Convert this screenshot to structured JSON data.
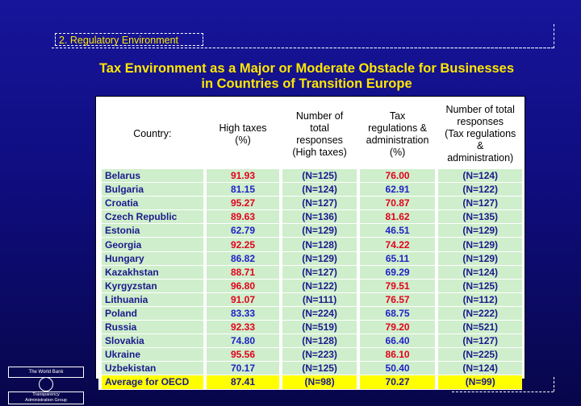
{
  "section_label": "2. Regulatory Environment",
  "title_line1": "Tax Environment as a Major or Moderate Obstacle for Businesses",
  "title_line2": "in Countries of Transition Europe",
  "headers": {
    "country": "Country:",
    "high_taxes": [
      "High taxes",
      "(%)"
    ],
    "responses_high": [
      "Number of",
      "total",
      "responses",
      "(High taxes)"
    ],
    "tax_regs": [
      "Tax",
      "regulations &",
      "administration",
      "(%)"
    ],
    "responses_regs": [
      "Number of total",
      "responses",
      "(Tax regulations",
      "&",
      "administration)"
    ]
  },
  "rows": [
    {
      "country": "Belarus",
      "high": "91.93",
      "high_color": "red",
      "n1": "(N=125)",
      "regs": "76.00",
      "regs_color": "red",
      "n2": "(N=124)"
    },
    {
      "country": "Bulgaria",
      "high": "81.15",
      "high_color": "blue",
      "n1": "(N=124)",
      "regs": "62.91",
      "regs_color": "blue",
      "n2": "(N=122)"
    },
    {
      "country": "Croatia",
      "high": "95.27",
      "high_color": "red",
      "n1": "(N=127)",
      "regs": "70.87",
      "regs_color": "red",
      "n2": "(N=127)"
    },
    {
      "country": "Czech Republic",
      "high": "89.63",
      "high_color": "red",
      "n1": "(N=136)",
      "regs": "81.62",
      "regs_color": "red",
      "n2": "(N=135)"
    },
    {
      "country": "Estonia",
      "high": "62.79",
      "high_color": "blue",
      "n1": "(N=129)",
      "regs": "46.51",
      "regs_color": "blue",
      "n2": "(N=129)"
    },
    {
      "country": "Georgia",
      "high": "92.25",
      "high_color": "red",
      "n1": "(N=128)",
      "regs": "74.22",
      "regs_color": "red",
      "n2": "(N=129)"
    },
    {
      "country": "Hungary",
      "high": "86.82",
      "high_color": "blue",
      "n1": "(N=129)",
      "regs": "65.11",
      "regs_color": "blue",
      "n2": "(N=129)"
    },
    {
      "country": "Kazakhstan",
      "high": "88.71",
      "high_color": "red",
      "n1": "(N=127)",
      "regs": "69.29",
      "regs_color": "blue",
      "n2": "(N=124)"
    },
    {
      "country": "Kyrgyzstan",
      "high": "96.80",
      "high_color": "red",
      "n1": "(N=122)",
      "regs": "79.51",
      "regs_color": "red",
      "n2": "(N=125)"
    },
    {
      "country": "Lithuania",
      "high": "91.07",
      "high_color": "red",
      "n1": "(N=111)",
      "regs": "76.57",
      "regs_color": "red",
      "n2": "(N=112)"
    },
    {
      "country": "Poland",
      "high": "83.33",
      "high_color": "blue",
      "n1": "(N=224)",
      "regs": "68.75",
      "regs_color": "blue",
      "n2": "(N=222)"
    },
    {
      "country": "Russia",
      "high": "92.33",
      "high_color": "red",
      "n1": "(N=519)",
      "regs": "79.20",
      "regs_color": "red",
      "n2": "(N=521)"
    },
    {
      "country": "Slovakia",
      "high": "74.80",
      "high_color": "blue",
      "n1": "(N=128)",
      "regs": "66.40",
      "regs_color": "blue",
      "n2": "(N=127)"
    },
    {
      "country": "Ukraine",
      "high": "95.56",
      "high_color": "red",
      "n1": "(N=223)",
      "regs": "86.10",
      "regs_color": "red",
      "n2": "(N=225)"
    },
    {
      "country": "Uzbekistan",
      "high": "70.17",
      "high_color": "blue",
      "n1": "(N=125)",
      "regs": "50.40",
      "regs_color": "blue",
      "n2": "(N=124)"
    }
  ],
  "average": {
    "country": "Average for OECD",
    "high": "87.41",
    "n1": "(N=98)",
    "regs": "70.27",
    "n2": "(N=99)"
  },
  "logo": {
    "top": "The World Bank",
    "bottom_line1": "Transparency",
    "bottom_line2": "Administration Group"
  },
  "colors": {
    "title": "#ffe600",
    "red": "#e3001b",
    "blue": "#1f22c8",
    "row_bg": "#cfeecc",
    "avg_bg": "#ffff00"
  }
}
